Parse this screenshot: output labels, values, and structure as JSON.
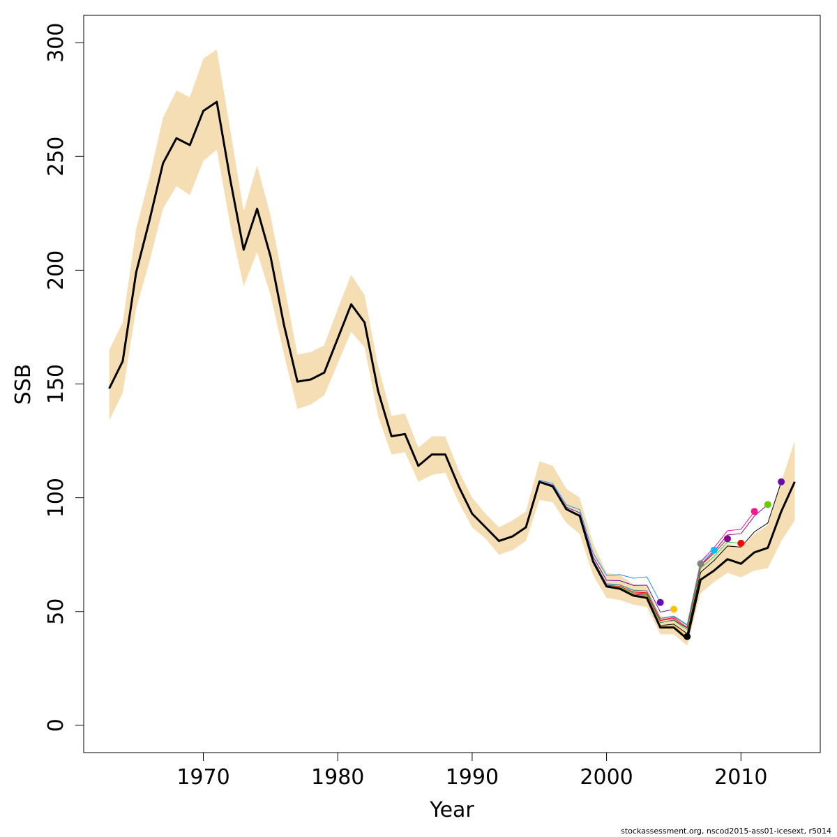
{
  "chart_data": {
    "type": "line",
    "xlabel": "Year",
    "ylabel": "SSB",
    "xlim": [
      1961.1,
      2015.9
    ],
    "ylim": [
      -12,
      312
    ],
    "x_ticks": [
      1970,
      1980,
      1990,
      2000,
      2010
    ],
    "y_ticks": [
      0,
      50,
      100,
      150,
      200,
      250,
      300
    ],
    "colors": {
      "band": "#f5deb3",
      "main": "#000000",
      "retro": [
        "#000000",
        "#8b008b",
        "#ff1493",
        "#32cd32",
        "#ff0000",
        "#00bfff",
        "#808080",
        "#ffc000",
        "#6a0dad",
        "#1e90ff",
        "#ff69b4"
      ]
    },
    "x": [
      1963,
      1964,
      1965,
      1966,
      1967,
      1968,
      1969,
      1970,
      1971,
      1972,
      1973,
      1974,
      1975,
      1976,
      1977,
      1978,
      1979,
      1980,
      1981,
      1982,
      1983,
      1984,
      1985,
      1986,
      1987,
      1988,
      1989,
      1990,
      1991,
      1992,
      1993,
      1994,
      1995,
      1996,
      1997,
      1998,
      1999,
      2000,
      2001,
      2002,
      2003,
      2004,
      2005,
      2006,
      2007,
      2008,
      2009,
      2010,
      2011,
      2012,
      2013,
      2014
    ],
    "series": [
      {
        "role": "estimate",
        "values": [
          148,
          160,
          199,
          222,
          247,
          258,
          255,
          270,
          274,
          240,
          209,
          227,
          206,
          176,
          151,
          152,
          155,
          170,
          185,
          177,
          147,
          127,
          128,
          114,
          119,
          119,
          105,
          93,
          87,
          81,
          83,
          87,
          107,
          105,
          95,
          92,
          72,
          61,
          60,
          57,
          56,
          43,
          43,
          38,
          64,
          68,
          73,
          71,
          76,
          78,
          94,
          107
        ]
      },
      {
        "role": "ci_upper",
        "values": [
          165,
          177,
          218,
          241,
          267,
          279,
          276,
          293,
          297,
          262,
          226,
          246,
          224,
          194,
          163,
          164,
          167,
          183,
          198,
          189,
          158,
          136,
          137,
          122,
          127,
          127,
          112,
          100,
          93,
          87,
          90,
          94,
          116,
          114,
          104,
          100,
          80,
          67,
          66,
          62,
          61,
          48,
          47,
          42,
          70,
          74,
          80,
          78,
          84,
          88,
          107,
          125
        ]
      },
      {
        "role": "ci_lower",
        "values": [
          134,
          146,
          183,
          204,
          227,
          237,
          233,
          248,
          253,
          220,
          193,
          208,
          189,
          163,
          139,
          141,
          145,
          159,
          173,
          166,
          136,
          119,
          120,
          107,
          110,
          111,
          98,
          87,
          82,
          75,
          77,
          81,
          99,
          98,
          89,
          84,
          66,
          56,
          55,
          53,
          52,
          40,
          40,
          35,
          58,
          63,
          67,
          65,
          68,
          69,
          81,
          90
        ]
      }
    ],
    "retrospective_peels": [
      {
        "terminal_year": 2013,
        "value": 107
      },
      {
        "terminal_year": 2012,
        "value": 97
      },
      {
        "terminal_year": 2011,
        "value": 94
      },
      {
        "terminal_year": 2010,
        "value": 80
      },
      {
        "terminal_year": 2009,
        "value": 82
      },
      {
        "terminal_year": 2008,
        "value": 77
      },
      {
        "terminal_year": 2007,
        "value": 71
      },
      {
        "terminal_year": 2006,
        "value": 39
      },
      {
        "terminal_year": 2005,
        "value": 51
      },
      {
        "terminal_year": 2004,
        "value": 54
      }
    ],
    "retro_marker_colors": {
      "2013": "#6a0dad",
      "2012": "#66cc00",
      "2011": "#ff1493",
      "2010": "#ff0000",
      "2009": "#8b008b",
      "2008": "#00bfff",
      "2007": "#808080",
      "2006": "#000000",
      "2005": "#ffc000",
      "2004": "#6a0dad"
    },
    "grid": false,
    "legend": "none"
  },
  "footer": "stockassessment.org, nscod2015-ass01-icesext, r5014"
}
